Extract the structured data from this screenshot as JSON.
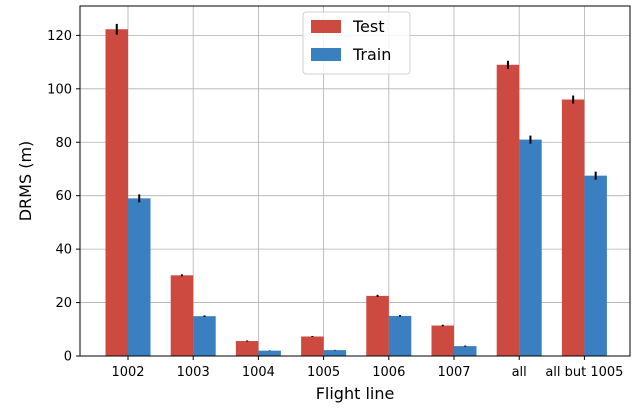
{
  "chart_data": {
    "type": "bar",
    "title": "",
    "xlabel": "Flight line",
    "ylabel": "DRMS (m)",
    "ylim": [
      0,
      131
    ],
    "yticks": [
      0,
      20,
      40,
      60,
      80,
      100,
      120
    ],
    "grid": true,
    "legend_position": "top-center",
    "categories": [
      "1002",
      "1003",
      "1004",
      "1005",
      "1006",
      "1007",
      "all",
      "all but 1005"
    ],
    "series": [
      {
        "name": "Test",
        "color": "#cd4a41",
        "values": [
          122.3,
          30.2,
          5.6,
          7.3,
          22.5,
          11.4,
          109.0,
          96.0
        ],
        "errors": [
          2.0,
          0.4,
          0.2,
          0.2,
          0.4,
          0.3,
          1.5,
          1.5
        ]
      },
      {
        "name": "Train",
        "color": "#3a7fbf",
        "values": [
          59.0,
          14.9,
          2.0,
          2.2,
          15.0,
          3.7,
          81.0,
          67.5
        ],
        "errors": [
          1.5,
          0.3,
          0.1,
          0.1,
          0.3,
          0.2,
          1.5,
          1.5
        ]
      }
    ]
  }
}
